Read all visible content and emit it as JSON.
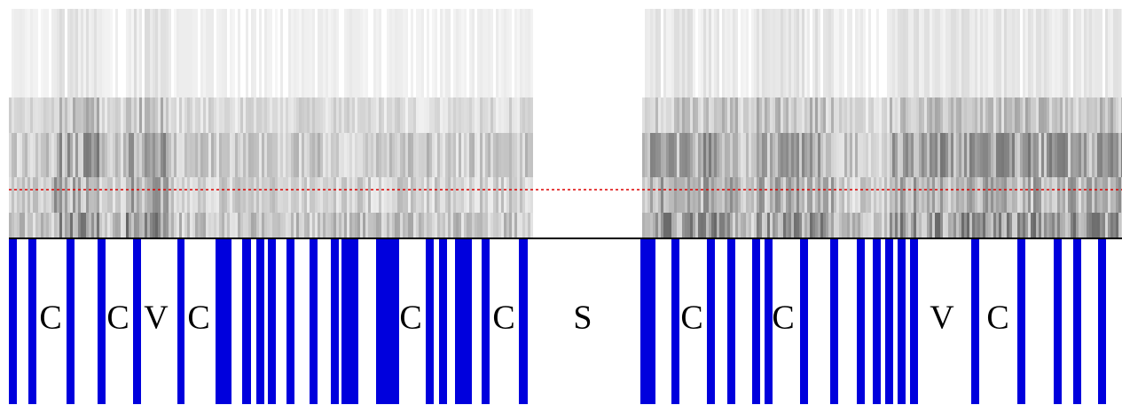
{
  "segments": [
    {
      "label": "C"
    },
    {
      "label": "C"
    },
    {
      "label": "V"
    },
    {
      "label": "C"
    },
    {
      "label": "C"
    },
    {
      "label": "C"
    },
    {
      "label": "S"
    },
    {
      "label": "C"
    },
    {
      "label": "C"
    },
    {
      "label": "V"
    },
    {
      "label": "C"
    }
  ]
}
